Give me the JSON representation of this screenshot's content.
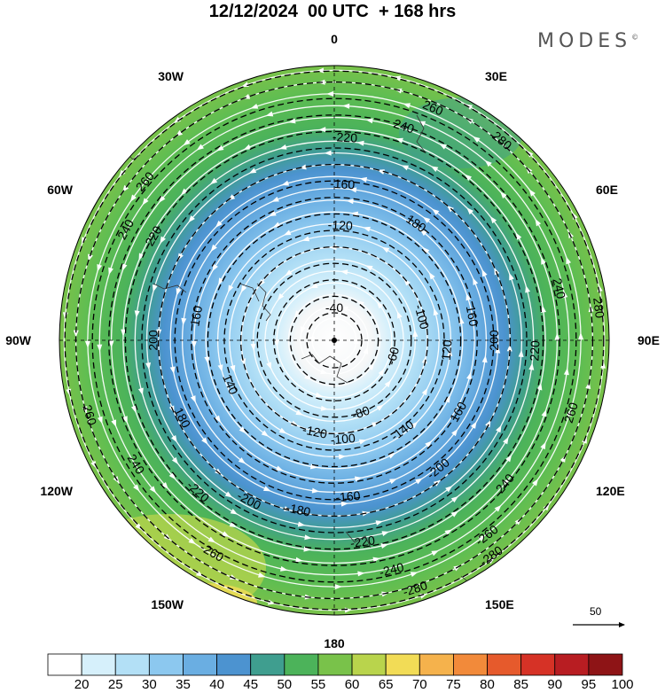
{
  "header": {
    "title": "12/12/2024  00 UTC  + 168 hrs",
    "brand": "MODES",
    "brand_mark": "©"
  },
  "map": {
    "projection": "polar stereographic (south pole)",
    "center": "90S",
    "longitude_labels": [
      "0",
      "30E",
      "60E",
      "90E",
      "120E",
      "150E",
      "180",
      "150W",
      "120W",
      "90W",
      "60W",
      "30W"
    ],
    "field_shaded": "wind speed",
    "field_contoured": "geopotential height (dam)",
    "contour_labels": [
      {
        "value": "-40",
        "lon": 0,
        "r": 0.12
      },
      {
        "value": "-60",
        "lon": 105,
        "r": 0.22
      },
      {
        "value": "-80",
        "lon": 160,
        "r": 0.28
      },
      {
        "value": "-100",
        "lon": 175,
        "r": 0.36
      },
      {
        "value": "-100",
        "lon": 75,
        "r": 0.33
      },
      {
        "value": "-120",
        "lon": -168,
        "r": 0.34
      },
      {
        "value": "-120",
        "lon": 3,
        "r": 0.42
      },
      {
        "value": "120",
        "lon": 95,
        "r": 0.41
      },
      {
        "value": "-140",
        "lon": 143,
        "r": 0.41
      },
      {
        "value": "140",
        "lon": -113,
        "r": 0.41
      },
      {
        "value": "-160",
        "lon": 175,
        "r": 0.57
      },
      {
        "value": "-160",
        "lon": 3,
        "r": 0.57
      },
      {
        "value": "160",
        "lon": 80,
        "r": 0.51
      },
      {
        "value": "160",
        "lon": -80,
        "r": 0.51
      },
      {
        "value": "160",
        "lon": 120,
        "r": 0.52
      },
      {
        "value": "180",
        "lon": 35,
        "r": 0.52
      },
      {
        "value": "-180",
        "lon": -168,
        "r": 0.63
      },
      {
        "value": "180",
        "lon": -117,
        "r": 0.62
      },
      {
        "value": "200",
        "lon": 90,
        "r": 0.58
      },
      {
        "value": "200",
        "lon": -90,
        "r": 0.66
      },
      {
        "value": "-200",
        "lon": 141,
        "r": 0.6
      },
      {
        "value": "-200",
        "lon": -152,
        "r": 0.66
      },
      {
        "value": "-220",
        "lon": 3,
        "r": 0.74
      },
      {
        "value": "220",
        "lon": -60,
        "r": 0.76
      },
      {
        "value": "-220",
        "lon": -138,
        "r": 0.74
      },
      {
        "value": "220",
        "lon": 93,
        "r": 0.73
      },
      {
        "value": "-220",
        "lon": 172,
        "r": 0.74
      },
      {
        "value": "240",
        "lon": 18,
        "r": 0.82
      },
      {
        "value": "240",
        "lon": 77,
        "r": 0.84
      },
      {
        "value": "240",
        "lon": -62,
        "r": 0.86
      },
      {
        "value": "240",
        "lon": 130,
        "r": 0.81
      },
      {
        "value": "-240",
        "lon": 166,
        "r": 0.86
      },
      {
        "value": "240",
        "lon": -122,
        "r": 0.85
      },
      {
        "value": "-260",
        "lon": -150,
        "r": 0.89
      },
      {
        "value": "260",
        "lon": 23,
        "r": 0.92
      },
      {
        "value": "260",
        "lon": 107,
        "r": 0.9
      },
      {
        "value": "260",
        "lon": -107,
        "r": 0.93
      },
      {
        "value": "-260",
        "lon": 142,
        "r": 0.9
      },
      {
        "value": "260",
        "lon": -50,
        "r": 0.9
      },
      {
        "value": "280",
        "lon": 40,
        "r": 0.95
      },
      {
        "value": "280",
        "lon": 83,
        "r": 0.97
      },
      {
        "value": "-280",
        "lon": 162,
        "r": 0.95
      },
      {
        "value": "-280",
        "lon": 144,
        "r": 0.97
      }
    ],
    "reference_vector": "50"
  },
  "colorbar": {
    "labels": [
      "20",
      "25",
      "30",
      "35",
      "40",
      "45",
      "50",
      "55",
      "60",
      "65",
      "70",
      "75",
      "80",
      "85",
      "90",
      "95",
      "100"
    ],
    "colors": [
      "#ffffff",
      "#d6f0fb",
      "#b3e0f6",
      "#8cc8ef",
      "#6aaee2",
      "#4c93d0",
      "#3f9e8f",
      "#4cb35a",
      "#79c24a",
      "#b9d44c",
      "#f2dc56",
      "#f5b24c",
      "#f28a3a",
      "#e65a2c",
      "#d63226",
      "#b81d22",
      "#8e1416"
    ]
  },
  "colors": {
    "contour": "#000000",
    "streamline": "#ffffff",
    "grid": "#000000"
  }
}
